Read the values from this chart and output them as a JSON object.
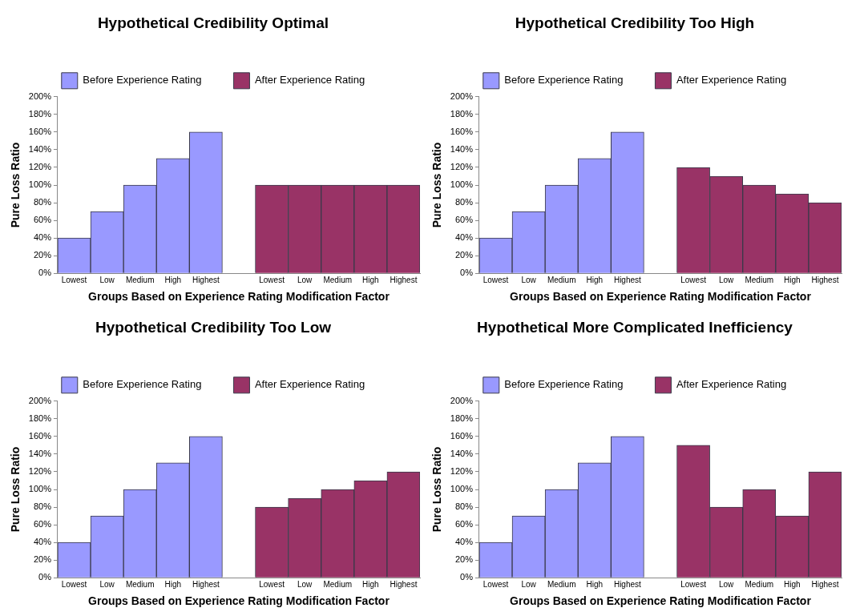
{
  "chart_data": [
    {
      "type": "bar",
      "title": "Hypothetical Credibility Optimal",
      "xlabel": "Groups Based on Experience Rating Modification Factor",
      "ylabel": "Pure Loss Ratio",
      "categories": [
        "Lowest",
        "Low",
        "Medium",
        "High",
        "Highest",
        null,
        "Lowest",
        "Low",
        "Medium",
        "High",
        "Highest"
      ],
      "series": [
        {
          "name": "Before Experience Rating",
          "color": "#9999ff",
          "values": [
            40,
            70,
            100,
            130,
            160,
            null,
            null,
            null,
            null,
            null,
            null
          ]
        },
        {
          "name": "After Experience Rating",
          "color": "#993366",
          "values": [
            null,
            null,
            null,
            null,
            null,
            null,
            100,
            100,
            100,
            100,
            100
          ]
        }
      ],
      "ylim": [
        0,
        200
      ],
      "yticks": [
        {
          "value": 0,
          "label": "0%"
        },
        {
          "value": 20,
          "label": "20%"
        },
        {
          "value": 40,
          "label": "40%"
        },
        {
          "value": 60,
          "label": "60%"
        },
        {
          "value": 80,
          "label": "80%"
        },
        {
          "value": 100,
          "label": "100%"
        },
        {
          "value": 120,
          "label": "120%"
        },
        {
          "value": 140,
          "label": "140%"
        },
        {
          "value": 160,
          "label": "160%"
        },
        {
          "value": 180,
          "label": "180%"
        },
        {
          "value": 200,
          "label": "200%"
        }
      ],
      "grid": false,
      "legend": "top"
    },
    {
      "type": "bar",
      "title": "Hypothetical Credibility Too High",
      "xlabel": "Groups Based on Experience Rating Modification Factor",
      "ylabel": "Pure Loss Ratio",
      "categories": [
        "Lowest",
        "Low",
        "Medium",
        "High",
        "Highest",
        null,
        "Lowest",
        "Low",
        "Medium",
        "High",
        "Highest"
      ],
      "series": [
        {
          "name": "Before Experience Rating",
          "color": "#9999ff",
          "values": [
            40,
            70,
            100,
            130,
            160,
            null,
            null,
            null,
            null,
            null,
            null
          ]
        },
        {
          "name": "After Experience Rating",
          "color": "#993366",
          "values": [
            null,
            null,
            null,
            null,
            null,
            null,
            120,
            110,
            100,
            90,
            80
          ]
        }
      ],
      "ylim": [
        0,
        200
      ],
      "yticks": [
        {
          "value": 0,
          "label": "0%"
        },
        {
          "value": 20,
          "label": "20%"
        },
        {
          "value": 40,
          "label": "40%"
        },
        {
          "value": 60,
          "label": "60%"
        },
        {
          "value": 80,
          "label": "80%"
        },
        {
          "value": 100,
          "label": "100%"
        },
        {
          "value": 120,
          "label": "120%"
        },
        {
          "value": 140,
          "label": "140%"
        },
        {
          "value": 160,
          "label": "160%"
        },
        {
          "value": 180,
          "label": "180%"
        },
        {
          "value": 200,
          "label": "200%"
        }
      ],
      "grid": false,
      "legend": "top"
    },
    {
      "type": "bar",
      "title": "Hypothetical Credibility Too Low",
      "xlabel": "Groups Based on Experience Rating Modification Factor",
      "ylabel": "Pure Loss Ratio",
      "categories": [
        "Lowest",
        "Low",
        "Medium",
        "High",
        "Highest",
        null,
        "Lowest",
        "Low",
        "Medium",
        "High",
        "Highest"
      ],
      "series": [
        {
          "name": "Before Experience Rating",
          "color": "#9999ff",
          "values": [
            40,
            70,
            100,
            130,
            160,
            null,
            null,
            null,
            null,
            null,
            null
          ]
        },
        {
          "name": "After Experience Rating",
          "color": "#993366",
          "values": [
            null,
            null,
            null,
            null,
            null,
            null,
            80,
            90,
            100,
            110,
            120
          ]
        }
      ],
      "ylim": [
        0,
        200
      ],
      "yticks": [
        {
          "value": 0,
          "label": "0%"
        },
        {
          "value": 20,
          "label": "20%"
        },
        {
          "value": 40,
          "label": "40%"
        },
        {
          "value": 60,
          "label": "60%"
        },
        {
          "value": 80,
          "label": "80%"
        },
        {
          "value": 100,
          "label": "100%"
        },
        {
          "value": 120,
          "label": "120%"
        },
        {
          "value": 140,
          "label": "140%"
        },
        {
          "value": 160,
          "label": "160%"
        },
        {
          "value": 180,
          "label": "180%"
        },
        {
          "value": 200,
          "label": "200%"
        }
      ],
      "grid": false,
      "legend": "top"
    },
    {
      "type": "bar",
      "title": "Hypothetical More Complicated Inefficiency",
      "xlabel": "Groups Based on Experience Rating Modification Factor",
      "ylabel": "Pure Loss Ratio",
      "categories": [
        "Lowest",
        "Low",
        "Medium",
        "High",
        "Highest",
        null,
        "Lowest",
        "Low",
        "Medium",
        "High",
        "Highest"
      ],
      "series": [
        {
          "name": "Before Experience Rating",
          "color": "#9999ff",
          "values": [
            40,
            70,
            100,
            130,
            160,
            null,
            null,
            null,
            null,
            null,
            null
          ]
        },
        {
          "name": "After Experience Rating",
          "color": "#993366",
          "values": [
            null,
            null,
            null,
            null,
            null,
            null,
            150,
            80,
            100,
            70,
            120
          ]
        }
      ],
      "ylim": [
        0,
        200
      ],
      "yticks": [
        {
          "value": 0,
          "label": "0%"
        },
        {
          "value": 20,
          "label": "20%"
        },
        {
          "value": 40,
          "label": "40%"
        },
        {
          "value": 60,
          "label": "60%"
        },
        {
          "value": 80,
          "label": "80%"
        },
        {
          "value": 100,
          "label": "100%"
        },
        {
          "value": 120,
          "label": "120%"
        },
        {
          "value": 140,
          "label": "140%"
        },
        {
          "value": 160,
          "label": "160%"
        },
        {
          "value": 180,
          "label": "180%"
        },
        {
          "value": 200,
          "label": "200%"
        }
      ],
      "grid": false,
      "legend": "top"
    }
  ]
}
